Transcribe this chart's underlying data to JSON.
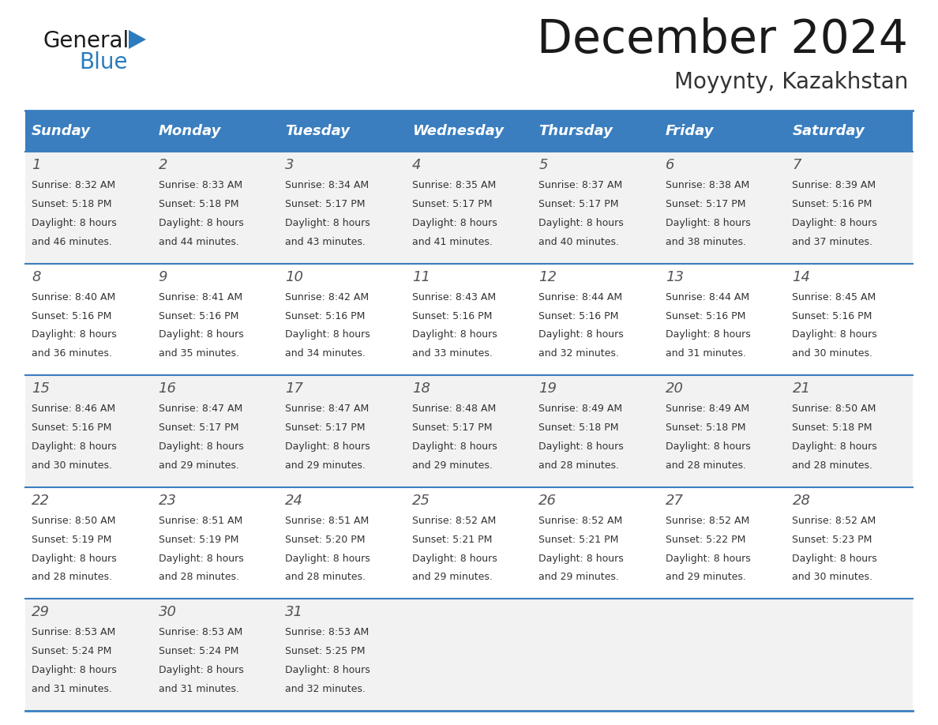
{
  "title": "December 2024",
  "subtitle": "Moyynty, Kazakhstan",
  "days_of_week": [
    "Sunday",
    "Monday",
    "Tuesday",
    "Wednesday",
    "Thursday",
    "Friday",
    "Saturday"
  ],
  "header_bg": "#3a7ebf",
  "header_text": "#ffffff",
  "row_bg_light": "#f2f2f2",
  "row_bg_white": "#ffffff",
  "cell_border": "#3a7ebf",
  "day_num_color": "#555555",
  "text_color": "#333333",
  "logo_general_color": "#1a1a1a",
  "logo_blue_color": "#2b7bbf",
  "logo_triangle_color": "#2b7bbf",
  "calendar": [
    [
      {
        "day": 1,
        "sunrise": "8:32 AM",
        "sunset": "5:18 PM",
        "daylight": "8 hours\nand 46 minutes."
      },
      {
        "day": 2,
        "sunrise": "8:33 AM",
        "sunset": "5:18 PM",
        "daylight": "8 hours\nand 44 minutes."
      },
      {
        "day": 3,
        "sunrise": "8:34 AM",
        "sunset": "5:17 PM",
        "daylight": "8 hours\nand 43 minutes."
      },
      {
        "day": 4,
        "sunrise": "8:35 AM",
        "sunset": "5:17 PM",
        "daylight": "8 hours\nand 41 minutes."
      },
      {
        "day": 5,
        "sunrise": "8:37 AM",
        "sunset": "5:17 PM",
        "daylight": "8 hours\nand 40 minutes."
      },
      {
        "day": 6,
        "sunrise": "8:38 AM",
        "sunset": "5:17 PM",
        "daylight": "8 hours\nand 38 minutes."
      },
      {
        "day": 7,
        "sunrise": "8:39 AM",
        "sunset": "5:16 PM",
        "daylight": "8 hours\nand 37 minutes."
      }
    ],
    [
      {
        "day": 8,
        "sunrise": "8:40 AM",
        "sunset": "5:16 PM",
        "daylight": "8 hours\nand 36 minutes."
      },
      {
        "day": 9,
        "sunrise": "8:41 AM",
        "sunset": "5:16 PM",
        "daylight": "8 hours\nand 35 minutes."
      },
      {
        "day": 10,
        "sunrise": "8:42 AM",
        "sunset": "5:16 PM",
        "daylight": "8 hours\nand 34 minutes."
      },
      {
        "day": 11,
        "sunrise": "8:43 AM",
        "sunset": "5:16 PM",
        "daylight": "8 hours\nand 33 minutes."
      },
      {
        "day": 12,
        "sunrise": "8:44 AM",
        "sunset": "5:16 PM",
        "daylight": "8 hours\nand 32 minutes."
      },
      {
        "day": 13,
        "sunrise": "8:44 AM",
        "sunset": "5:16 PM",
        "daylight": "8 hours\nand 31 minutes."
      },
      {
        "day": 14,
        "sunrise": "8:45 AM",
        "sunset": "5:16 PM",
        "daylight": "8 hours\nand 30 minutes."
      }
    ],
    [
      {
        "day": 15,
        "sunrise": "8:46 AM",
        "sunset": "5:16 PM",
        "daylight": "8 hours\nand 30 minutes."
      },
      {
        "day": 16,
        "sunrise": "8:47 AM",
        "sunset": "5:17 PM",
        "daylight": "8 hours\nand 29 minutes."
      },
      {
        "day": 17,
        "sunrise": "8:47 AM",
        "sunset": "5:17 PM",
        "daylight": "8 hours\nand 29 minutes."
      },
      {
        "day": 18,
        "sunrise": "8:48 AM",
        "sunset": "5:17 PM",
        "daylight": "8 hours\nand 29 minutes."
      },
      {
        "day": 19,
        "sunrise": "8:49 AM",
        "sunset": "5:18 PM",
        "daylight": "8 hours\nand 28 minutes."
      },
      {
        "day": 20,
        "sunrise": "8:49 AM",
        "sunset": "5:18 PM",
        "daylight": "8 hours\nand 28 minutes."
      },
      {
        "day": 21,
        "sunrise": "8:50 AM",
        "sunset": "5:18 PM",
        "daylight": "8 hours\nand 28 minutes."
      }
    ],
    [
      {
        "day": 22,
        "sunrise": "8:50 AM",
        "sunset": "5:19 PM",
        "daylight": "8 hours\nand 28 minutes."
      },
      {
        "day": 23,
        "sunrise": "8:51 AM",
        "sunset": "5:19 PM",
        "daylight": "8 hours\nand 28 minutes."
      },
      {
        "day": 24,
        "sunrise": "8:51 AM",
        "sunset": "5:20 PM",
        "daylight": "8 hours\nand 28 minutes."
      },
      {
        "day": 25,
        "sunrise": "8:52 AM",
        "sunset": "5:21 PM",
        "daylight": "8 hours\nand 29 minutes."
      },
      {
        "day": 26,
        "sunrise": "8:52 AM",
        "sunset": "5:21 PM",
        "daylight": "8 hours\nand 29 minutes."
      },
      {
        "day": 27,
        "sunrise": "8:52 AM",
        "sunset": "5:22 PM",
        "daylight": "8 hours\nand 29 minutes."
      },
      {
        "day": 28,
        "sunrise": "8:52 AM",
        "sunset": "5:23 PM",
        "daylight": "8 hours\nand 30 minutes."
      }
    ],
    [
      {
        "day": 29,
        "sunrise": "8:53 AM",
        "sunset": "5:24 PM",
        "daylight": "8 hours\nand 31 minutes."
      },
      {
        "day": 30,
        "sunrise": "8:53 AM",
        "sunset": "5:24 PM",
        "daylight": "8 hours\nand 31 minutes."
      },
      {
        "day": 31,
        "sunrise": "8:53 AM",
        "sunset": "5:25 PM",
        "daylight": "8 hours\nand 32 minutes."
      },
      null,
      null,
      null,
      null
    ]
  ]
}
